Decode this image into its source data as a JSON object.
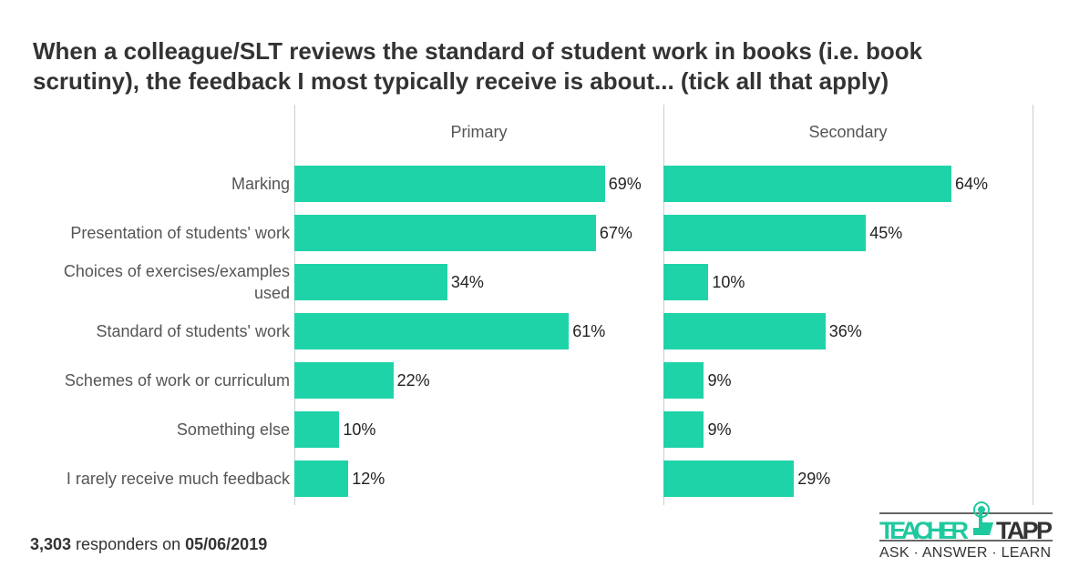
{
  "chart_data": {
    "type": "bar",
    "title": "When a colleague/SLT reviews the standard of student work in books (i.e. book scrutiny), the feedback I most typically receive is about... (tick all that apply)",
    "categories": [
      "Marking",
      "Presentation of students' work",
      "Choices of exercises/examples used",
      "Standard of students' work",
      "Schemes of work or curriculum",
      "Something else",
      "I rarely receive much feedback"
    ],
    "series": [
      {
        "name": "Primary",
        "values": [
          69,
          67,
          34,
          61,
          22,
          10,
          12
        ]
      },
      {
        "name": "Secondary",
        "values": [
          64,
          45,
          10,
          36,
          9,
          9,
          29
        ]
      }
    ],
    "xlim": [
      0,
      80
    ],
    "value_suffix": "%",
    "color": "#1fd3a9"
  },
  "footer": {
    "count": "3,303",
    "middle": " responders on ",
    "date": "05/06/2019"
  },
  "logo": {
    "word1": "TEACHER",
    "word2": "TAPP",
    "tagline": "ASK · ANSWER · LEARN"
  }
}
